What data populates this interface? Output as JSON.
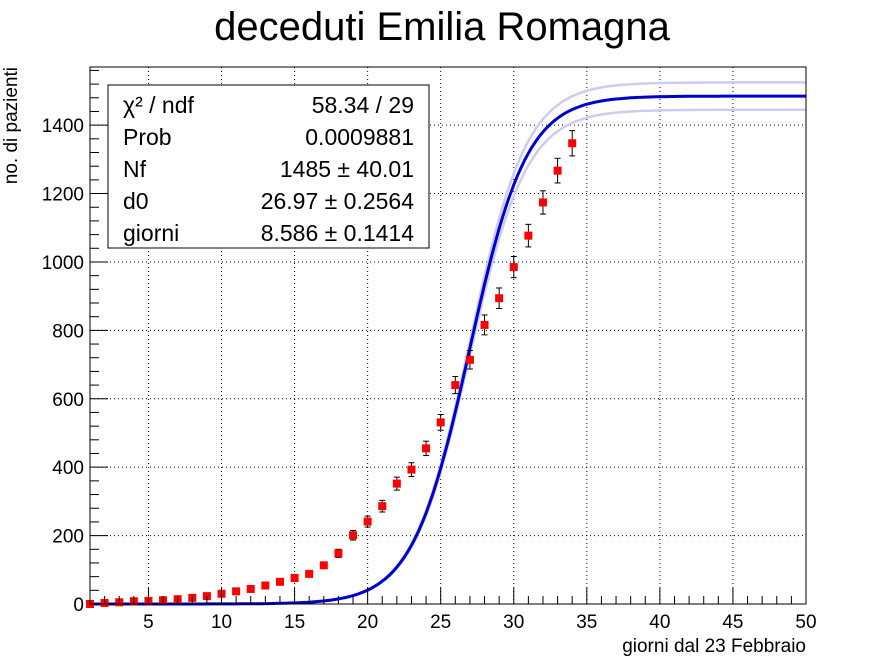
{
  "chart_data": {
    "type": "scatter",
    "title": "deceduti Emilia Romagna",
    "xlabel": "giorni dal 23 Febbraio",
    "ylabel": "no. di pazienti",
    "xlim": [
      1,
      50
    ],
    "ylim": [
      0,
      1570
    ],
    "grid": true,
    "x_ticks": [
      5,
      10,
      15,
      20,
      25,
      30,
      35,
      40,
      45,
      50
    ],
    "y_ticks": [
      0,
      200,
      400,
      600,
      800,
      1000,
      1200,
      1400
    ],
    "series": [
      {
        "kind": "data",
        "color": "#ff0000",
        "x": [
          1,
          2,
          3,
          4,
          5,
          6,
          7,
          8,
          9,
          10,
          11,
          12,
          13,
          14,
          15,
          16,
          17,
          18,
          19,
          20,
          21,
          22,
          23,
          24,
          25,
          26,
          27,
          28,
          29,
          30,
          31,
          32,
          33,
          34
        ],
        "y": [
          0,
          3,
          5,
          8,
          9,
          11,
          14,
          18,
          23,
          30,
          37,
          44,
          54,
          65,
          76,
          88,
          113,
          148,
          201,
          241,
          286,
          352,
          393,
          455,
          531,
          640,
          714,
          816,
          894,
          985,
          1077,
          1174,
          1267,
          1347
        ],
        "err": [
          1,
          2,
          2,
          3,
          3,
          3,
          4,
          4,
          5,
          5,
          6,
          7,
          7,
          8,
          9,
          9,
          11,
          12,
          14,
          16,
          17,
          19,
          20,
          21,
          23,
          25,
          27,
          29,
          30,
          31,
          33,
          34,
          36,
          37
        ]
      },
      {
        "kind": "fit",
        "color": "#0000cc",
        "model": "logistic",
        "params": {
          "Nf": 1485,
          "d0": 26.97,
          "giorni": 8.586
        }
      },
      {
        "kind": "band",
        "color": "#ccccee",
        "params_upper": {
          "Nf": 1525,
          "d0": 26.97,
          "giorni": 8.586
        },
        "params_lower": {
          "Nf": 1445,
          "d0": 26.97,
          "giorni": 8.586
        }
      }
    ],
    "stats_box": {
      "position": "top-left",
      "rows": [
        {
          "label": "χ² / ndf",
          "value": "58.34 / 29"
        },
        {
          "label": "Prob",
          "value": "0.0009881"
        },
        {
          "label": "Nf",
          "value": "1485 ± 40.01"
        },
        {
          "label": "d0",
          "value": "26.97 ± 0.2564"
        },
        {
          "label": "giorni",
          "value": "8.586 ± 0.1414"
        }
      ]
    }
  }
}
